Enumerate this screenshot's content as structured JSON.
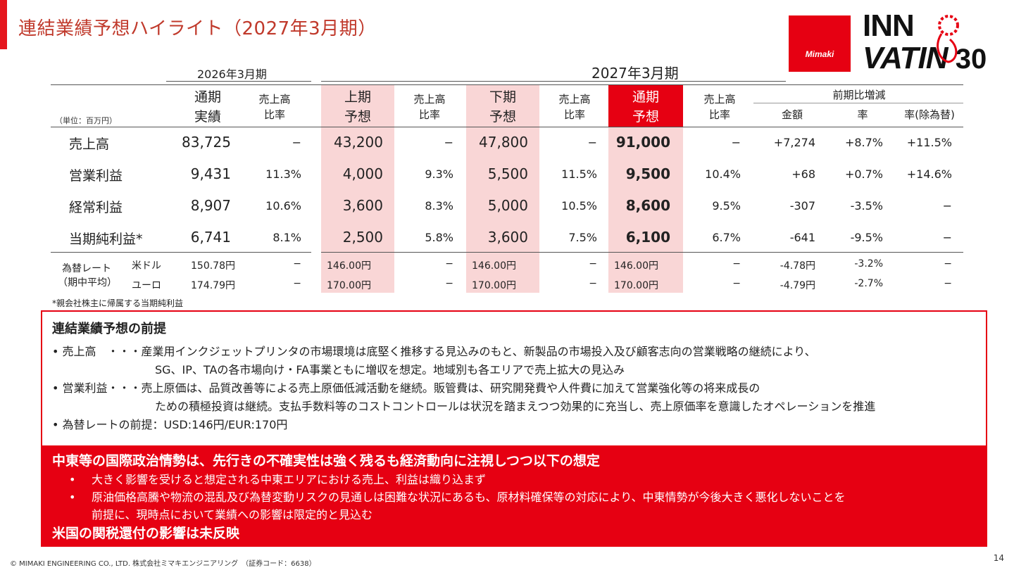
{
  "title": "連結業績予想ハイライト（2027年3月期）",
  "logo": {
    "brand": "Mimaki",
    "line1": "INN",
    "line2": "VATI",
    "line2b": "N",
    "num": "30"
  },
  "table": {
    "period_2026": "2026年3月期",
    "period_2027": "2027年3月期",
    "unit": "（単位：百万円）",
    "headers": {
      "full_actual": [
        "通期",
        "実績"
      ],
      "ratio": [
        "売上高",
        "比率"
      ],
      "h1": [
        "上期",
        "予想"
      ],
      "h2": [
        "下期",
        "予想"
      ],
      "full_forecast": [
        "通期",
        "予想"
      ],
      "yoy": "前期比増減",
      "amount": "金額",
      "rate": "率",
      "rate_ex": "率(除為替)"
    },
    "rows": [
      {
        "label": "売上高",
        "v": [
          "83,725",
          "−",
          "43,200",
          "−",
          "47,800",
          "−",
          "91,000",
          "−",
          "+7,274",
          "+8.7%",
          "+11.5%"
        ]
      },
      {
        "label": "営業利益",
        "v": [
          "9,431",
          "11.3%",
          "4,000",
          "9.3%",
          "5,500",
          "11.5%",
          "9,500",
          "10.4%",
          "+68",
          "+0.7%",
          "+14.6%"
        ]
      },
      {
        "label": "経常利益",
        "v": [
          "8,907",
          "10.6%",
          "3,600",
          "8.3%",
          "5,000",
          "10.5%",
          "8,600",
          "9.5%",
          "-307",
          "-3.5%",
          "−"
        ]
      },
      {
        "label": "当期純利益*",
        "v": [
          "6,741",
          "8.1%",
          "2,500",
          "5.8%",
          "3,600",
          "7.5%",
          "6,100",
          "6.7%",
          "-641",
          "-9.5%",
          "−"
        ]
      }
    ],
    "fx_label": [
      "為替レート",
      "（期中平均）"
    ],
    "fx_rows": [
      {
        "currency": "米ドル",
        "v": [
          "150.78円",
          "−",
          "146.00円",
          "−",
          "146.00円",
          "−",
          "146.00円",
          "−",
          "-4.78円",
          "-3.2%",
          "−"
        ]
      },
      {
        "currency": "ユーロ",
        "v": [
          "174.79円",
          "−",
          "170.00円",
          "−",
          "170.00円",
          "−",
          "170.00円",
          "−",
          "-4.79円",
          "-2.7%",
          "−"
        ]
      }
    ],
    "footnote": "*親会社株主に帰属する当期純利益"
  },
  "premise": {
    "title": "連結業績予想の前提",
    "lines": [
      "• 売上高　・・・産業用インクジェットプリンタの市場環境は底堅く推移する見込みのもと、新製品の市場投入及び顧客志向の営業戦略の継続により、",
      "SG、IP、TAの各市場向け・FA事業ともに増収を想定。地域別も各エリアで売上拡大の見込み",
      "• 営業利益・・・売上原価は、品質改善等による売上原価低減活動を継続。販管費は、研究開発費や人件費に加えて営業強化等の将来成長の",
      "ための積極投資は継続。支払手数料等のコストコントロールは状況を踏まえつつ効果的に充当し、売上原価率を意識したオペレーションを推進",
      "• 為替レートの前提：USD:146円/EUR:170円"
    ]
  },
  "middle_east": {
    "title": "中東等の国際政治情勢は、先行きの不確実性は強く残るも経済動向に注視しつつ以下の想定",
    "bullets": [
      "大きく影響を受けると想定される中東エリアにおける売上、利益は織り込まず",
      "原油価格高騰や物流の混乱及び為替変動リスクの見通しは困難な状況にあるも、原材料確保等の対応により、中東情勢が今後大きく悪化しないことを"
    ],
    "bullet2_cont": "前提に、現時点において業績への影響は限定的と見込む",
    "closing": "米国の関税還付の影響は未反映"
  },
  "footer": "© MIMAKI ENGINEERING CO., LTD. 株式会社ミマキエンジニアリング　（証券コード：6638）",
  "page_number": "14"
}
